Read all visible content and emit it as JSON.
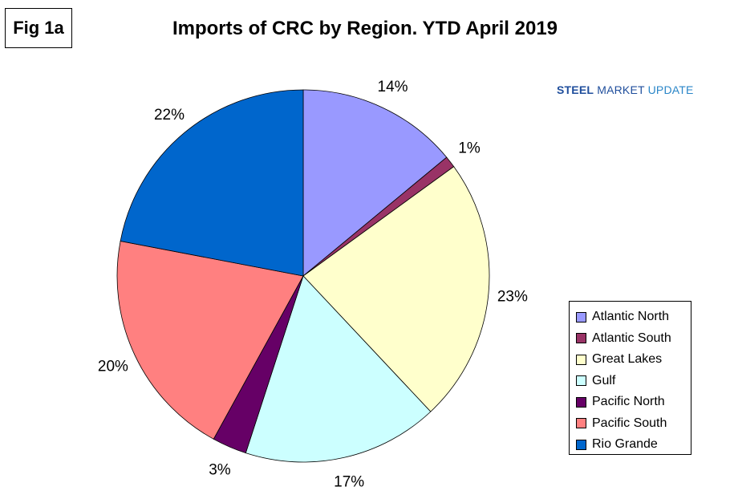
{
  "figure": {
    "label": "Fig 1a"
  },
  "logo": {
    "text_part1": "STEEL",
    "text_part2": "MARKET",
    "text_part3": "UPDATE"
  },
  "chart_data": {
    "type": "pie",
    "title": "Imports of CRC by Region. YTD April 2019",
    "legend_position": "right",
    "slices": [
      {
        "name": "Atlantic North",
        "value": 14,
        "label": "14%",
        "color": "#9999ff"
      },
      {
        "name": "Atlantic South",
        "value": 1,
        "label": "1%",
        "color": "#993366"
      },
      {
        "name": "Great Lakes",
        "value": 23,
        "label": "23%",
        "color": "#ffffcc"
      },
      {
        "name": "Gulf",
        "value": 17,
        "label": "17%",
        "color": "#ccffff"
      },
      {
        "name": "Pacific North",
        "value": 3,
        "label": "3%",
        "color": "#660066"
      },
      {
        "name": "Pacific South",
        "value": 20,
        "label": "20%",
        "color": "#ff8080"
      },
      {
        "name": "Rio Grande",
        "value": 22,
        "label": "22%",
        "color": "#0066cc"
      }
    ]
  }
}
